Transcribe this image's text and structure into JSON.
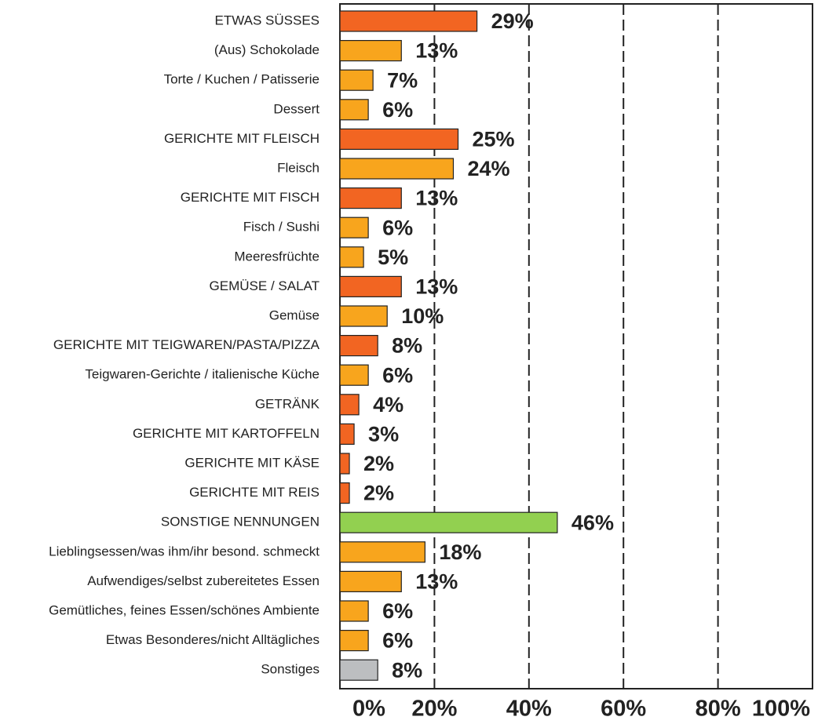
{
  "chart_data": {
    "type": "bar",
    "orientation": "horizontal",
    "categories": [
      "ETWAS SÜSSES",
      "(Aus) Schokolade",
      "Torte / Kuchen / Patisserie",
      "Dessert",
      "GERICHTE MIT FLEISCH",
      "Fleisch",
      "GERICHTE MIT FISCH",
      "Fisch / Sushi",
      "Meeresfrüchte",
      "GEMÜSE / SALAT",
      "Gemüse",
      "GERICHTE MIT TEIGWAREN/PASTA/PIZZA",
      "Teigwaren-Gerichte / italienische Küche",
      "GETRÄNK",
      "GERICHTE MIT KARTOFFELN",
      "GERICHTE MIT KÄSE",
      "GERICHTE MIT REIS",
      "SONSTIGE NENNUNGEN",
      "Lieblingsessen/was ihm/ihr besond. schmeckt",
      "Aufwendiges/selbst zubereitetes Essen",
      "Gemütliches, feines Essen/schönes Ambiente",
      "Etwas Besonderes/nicht Alltägliches",
      "Sonstiges"
    ],
    "values": [
      29,
      13,
      7,
      6,
      25,
      24,
      13,
      6,
      5,
      13,
      10,
      8,
      6,
      4,
      3,
      2,
      2,
      46,
      18,
      13,
      6,
      6,
      8
    ],
    "value_labels": [
      "29%",
      "13%",
      "7%",
      "6%",
      "25%",
      "24%",
      "13%",
      "6%",
      "5%",
      "13%",
      "10%",
      "8%",
      "6%",
      "4%",
      "3%",
      "2%",
      "2%",
      "46%",
      "18%",
      "13%",
      "6%",
      "6%",
      "8%"
    ],
    "colors": [
      "#f26522",
      "#f8a51d",
      "#f8a51d",
      "#f8a51d",
      "#f26522",
      "#f8a51d",
      "#f26522",
      "#f8a51d",
      "#f8a51d",
      "#f26522",
      "#f8a51d",
      "#f26522",
      "#f8a51d",
      "#f26522",
      "#f26522",
      "#f26522",
      "#f26522",
      "#92d050",
      "#f8a51d",
      "#f8a51d",
      "#f8a51d",
      "#f8a51d",
      "#bcbec0"
    ],
    "xlim": [
      0,
      100
    ],
    "xticks": [
      {
        "value": 0,
        "label": "0%"
      },
      {
        "value": 20,
        "label": "20%"
      },
      {
        "value": 40,
        "label": "40%"
      },
      {
        "value": 60,
        "label": "60%"
      },
      {
        "value": 80,
        "label": "80%"
      },
      {
        "value": 100,
        "label": "100%"
      }
    ],
    "grid": true
  }
}
